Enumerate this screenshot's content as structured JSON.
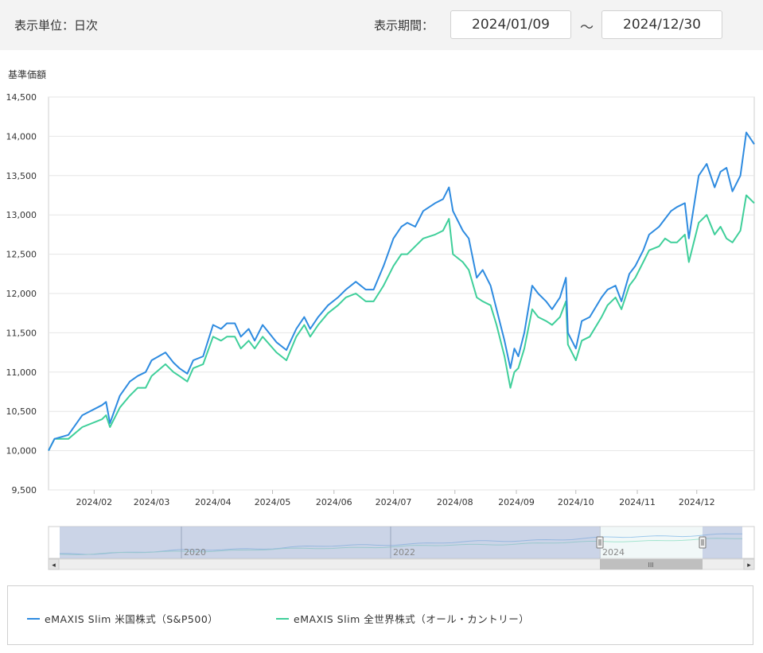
{
  "controls": {
    "unit_label": "表示単位：日次",
    "period_label": "表示期間：",
    "start_date": "2024/01/09",
    "separator": "〜",
    "end_date": "2024/12/30"
  },
  "colors": {
    "sp500": "#2e8be0",
    "allworld": "#3fcf9a",
    "grid": "#e6e6e6",
    "navigator_mask": "#b9c5df"
  },
  "chart_data": {
    "type": "line",
    "ylabel": "基準価額",
    "ylim": [
      9500,
      14500
    ],
    "yticks": [
      9500,
      10000,
      10500,
      11000,
      11500,
      12000,
      12500,
      13000,
      13500,
      14000,
      14500
    ],
    "ytick_labels": [
      "9,500",
      "10,000",
      "10,500",
      "11,000",
      "11,500",
      "12,000",
      "12,500",
      "13,000",
      "13,500",
      "14,000",
      "14,500"
    ],
    "xlim": [
      "2024-01-09",
      "2024-12-30"
    ],
    "xticks": [
      "2024-02-01",
      "2024-03-01",
      "2024-04-01",
      "2024-05-01",
      "2024-06-01",
      "2024-07-01",
      "2024-08-01",
      "2024-09-01",
      "2024-10-01",
      "2024-11-01",
      "2024-12-01"
    ],
    "xtick_labels": [
      "2024/02",
      "2024/03",
      "2024/04",
      "2024/05",
      "2024/06",
      "2024/07",
      "2024/08",
      "2024/09",
      "2024/10",
      "2024/11",
      "2024/12"
    ],
    "series": [
      {
        "name": "eMAXIS Slim 米国株式（S&P500）",
        "points": [
          [
            "2024-01-09",
            10000
          ],
          [
            "2024-01-12",
            10150
          ],
          [
            "2024-01-19",
            10200
          ],
          [
            "2024-01-26",
            10450
          ],
          [
            "2024-02-05",
            10580
          ],
          [
            "2024-02-07",
            10620
          ],
          [
            "2024-02-09",
            10350
          ],
          [
            "2024-02-14",
            10700
          ],
          [
            "2024-02-19",
            10880
          ],
          [
            "2024-02-23",
            10950
          ],
          [
            "2024-02-27",
            11000
          ],
          [
            "2024-03-01",
            11150
          ],
          [
            "2024-03-08",
            11250
          ],
          [
            "2024-03-12",
            11120
          ],
          [
            "2024-03-15",
            11050
          ],
          [
            "2024-03-19",
            10980
          ],
          [
            "2024-03-22",
            11150
          ],
          [
            "2024-03-27",
            11200
          ],
          [
            "2024-04-01",
            11600
          ],
          [
            "2024-04-05",
            11550
          ],
          [
            "2024-04-08",
            11620
          ],
          [
            "2024-04-12",
            11620
          ],
          [
            "2024-04-15",
            11450
          ],
          [
            "2024-04-19",
            11550
          ],
          [
            "2024-04-22",
            11400
          ],
          [
            "2024-04-26",
            11600
          ],
          [
            "2024-05-03",
            11380
          ],
          [
            "2024-05-08",
            11280
          ],
          [
            "2024-05-13",
            11550
          ],
          [
            "2024-05-17",
            11700
          ],
          [
            "2024-05-20",
            11550
          ],
          [
            "2024-05-24",
            11700
          ],
          [
            "2024-05-29",
            11850
          ],
          [
            "2024-06-03",
            11950
          ],
          [
            "2024-06-07",
            12050
          ],
          [
            "2024-06-12",
            12150
          ],
          [
            "2024-06-17",
            12050
          ],
          [
            "2024-06-21",
            12050
          ],
          [
            "2024-06-26",
            12350
          ],
          [
            "2024-07-01",
            12700
          ],
          [
            "2024-07-05",
            12850
          ],
          [
            "2024-07-08",
            12900
          ],
          [
            "2024-07-12",
            12850
          ],
          [
            "2024-07-16",
            13050
          ],
          [
            "2024-07-22",
            13150
          ],
          [
            "2024-07-26",
            13200
          ],
          [
            "2024-07-29",
            13350
          ],
          [
            "2024-07-31",
            13050
          ],
          [
            "2024-08-05",
            12800
          ],
          [
            "2024-08-08",
            12700
          ],
          [
            "2024-08-12",
            12200
          ],
          [
            "2024-08-15",
            12300
          ],
          [
            "2024-08-19",
            12100
          ],
          [
            "2024-08-22",
            11800
          ],
          [
            "2024-08-26",
            11400
          ],
          [
            "2024-08-29",
            11050
          ],
          [
            "2024-08-31",
            11300
          ],
          [
            "2024-09-02",
            11200
          ],
          [
            "2024-09-05",
            11500
          ],
          [
            "2024-09-09",
            12100
          ],
          [
            "2024-09-12",
            12000
          ],
          [
            "2024-09-16",
            11900
          ],
          [
            "2024-09-19",
            11800
          ],
          [
            "2024-09-23",
            11950
          ],
          [
            "2024-09-26",
            12200
          ],
          [
            "2024-09-27",
            11500
          ],
          [
            "2024-10-01",
            11300
          ],
          [
            "2024-10-04",
            11650
          ],
          [
            "2024-10-08",
            11700
          ],
          [
            "2024-10-14",
            11950
          ],
          [
            "2024-10-17",
            12050
          ],
          [
            "2024-10-21",
            12100
          ],
          [
            "2024-10-24",
            11900
          ],
          [
            "2024-10-28",
            12250
          ],
          [
            "2024-10-31",
            12350
          ],
          [
            "2024-11-04",
            12550
          ],
          [
            "2024-11-07",
            12750
          ],
          [
            "2024-11-12",
            12850
          ],
          [
            "2024-11-15",
            12950
          ],
          [
            "2024-11-18",
            13050
          ],
          [
            "2024-11-21",
            13100
          ],
          [
            "2024-11-25",
            13150
          ],
          [
            "2024-11-27",
            12700
          ],
          [
            "2024-12-02",
            13500
          ],
          [
            "2024-12-06",
            13650
          ],
          [
            "2024-12-10",
            13350
          ],
          [
            "2024-12-13",
            13550
          ],
          [
            "2024-12-16",
            13600
          ],
          [
            "2024-12-19",
            13300
          ],
          [
            "2024-12-23",
            13500
          ],
          [
            "2024-12-26",
            14050
          ],
          [
            "2024-12-30",
            13900
          ]
        ]
      },
      {
        "name": "eMAXIS Slim 全世界株式（オール・カントリー）",
        "points": [
          [
            "2024-01-09",
            10000
          ],
          [
            "2024-01-12",
            10150
          ],
          [
            "2024-01-19",
            10150
          ],
          [
            "2024-01-26",
            10300
          ],
          [
            "2024-02-05",
            10400
          ],
          [
            "2024-02-07",
            10450
          ],
          [
            "2024-02-09",
            10300
          ],
          [
            "2024-02-14",
            10550
          ],
          [
            "2024-02-19",
            10700
          ],
          [
            "2024-02-23",
            10800
          ],
          [
            "2024-02-27",
            10800
          ],
          [
            "2024-03-01",
            10950
          ],
          [
            "2024-03-08",
            11100
          ],
          [
            "2024-03-12",
            11000
          ],
          [
            "2024-03-15",
            10950
          ],
          [
            "2024-03-19",
            10880
          ],
          [
            "2024-03-22",
            11050
          ],
          [
            "2024-03-27",
            11100
          ],
          [
            "2024-04-01",
            11450
          ],
          [
            "2024-04-05",
            11400
          ],
          [
            "2024-04-08",
            11450
          ],
          [
            "2024-04-12",
            11450
          ],
          [
            "2024-04-15",
            11300
          ],
          [
            "2024-04-19",
            11400
          ],
          [
            "2024-04-22",
            11300
          ],
          [
            "2024-04-26",
            11450
          ],
          [
            "2024-05-03",
            11250
          ],
          [
            "2024-05-08",
            11150
          ],
          [
            "2024-05-13",
            11450
          ],
          [
            "2024-05-17",
            11600
          ],
          [
            "2024-05-20",
            11450
          ],
          [
            "2024-05-24",
            11600
          ],
          [
            "2024-05-29",
            11750
          ],
          [
            "2024-06-03",
            11850
          ],
          [
            "2024-06-07",
            11950
          ],
          [
            "2024-06-12",
            12000
          ],
          [
            "2024-06-17",
            11900
          ],
          [
            "2024-06-21",
            11900
          ],
          [
            "2024-06-26",
            12100
          ],
          [
            "2024-07-01",
            12350
          ],
          [
            "2024-07-05",
            12500
          ],
          [
            "2024-07-08",
            12500
          ],
          [
            "2024-07-12",
            12600
          ],
          [
            "2024-07-16",
            12700
          ],
          [
            "2024-07-22",
            12750
          ],
          [
            "2024-07-26",
            12800
          ],
          [
            "2024-07-29",
            12950
          ],
          [
            "2024-07-31",
            12500
          ],
          [
            "2024-08-05",
            12400
          ],
          [
            "2024-08-08",
            12300
          ],
          [
            "2024-08-12",
            11950
          ],
          [
            "2024-08-15",
            11900
          ],
          [
            "2024-08-19",
            11850
          ],
          [
            "2024-08-22",
            11600
          ],
          [
            "2024-08-26",
            11200
          ],
          [
            "2024-08-29",
            10800
          ],
          [
            "2024-08-31",
            11000
          ],
          [
            "2024-09-02",
            11050
          ],
          [
            "2024-09-05",
            11300
          ],
          [
            "2024-09-09",
            11800
          ],
          [
            "2024-09-12",
            11700
          ],
          [
            "2024-09-16",
            11650
          ],
          [
            "2024-09-19",
            11600
          ],
          [
            "2024-09-23",
            11700
          ],
          [
            "2024-09-26",
            11900
          ],
          [
            "2024-09-27",
            11350
          ],
          [
            "2024-10-01",
            11150
          ],
          [
            "2024-10-04",
            11400
          ],
          [
            "2024-10-08",
            11450
          ],
          [
            "2024-10-14",
            11700
          ],
          [
            "2024-10-17",
            11850
          ],
          [
            "2024-10-21",
            11950
          ],
          [
            "2024-10-24",
            11800
          ],
          [
            "2024-10-28",
            12100
          ],
          [
            "2024-10-31",
            12200
          ],
          [
            "2024-11-04",
            12400
          ],
          [
            "2024-11-07",
            12550
          ],
          [
            "2024-11-12",
            12600
          ],
          [
            "2024-11-15",
            12700
          ],
          [
            "2024-11-18",
            12650
          ],
          [
            "2024-11-21",
            12650
          ],
          [
            "2024-11-25",
            12750
          ],
          [
            "2024-11-27",
            12400
          ],
          [
            "2024-12-02",
            12900
          ],
          [
            "2024-12-06",
            13000
          ],
          [
            "2024-12-10",
            12750
          ],
          [
            "2024-12-13",
            12850
          ],
          [
            "2024-12-16",
            12700
          ],
          [
            "2024-12-19",
            12650
          ],
          [
            "2024-12-23",
            12800
          ],
          [
            "2024-12-26",
            13250
          ],
          [
            "2024-12-30",
            13150
          ]
        ]
      }
    ]
  },
  "navigator": {
    "year_labels": [
      "2020",
      "2022",
      "2024"
    ],
    "scroll_grip": "III",
    "left_arrow": "◂",
    "right_arrow": "▸"
  }
}
